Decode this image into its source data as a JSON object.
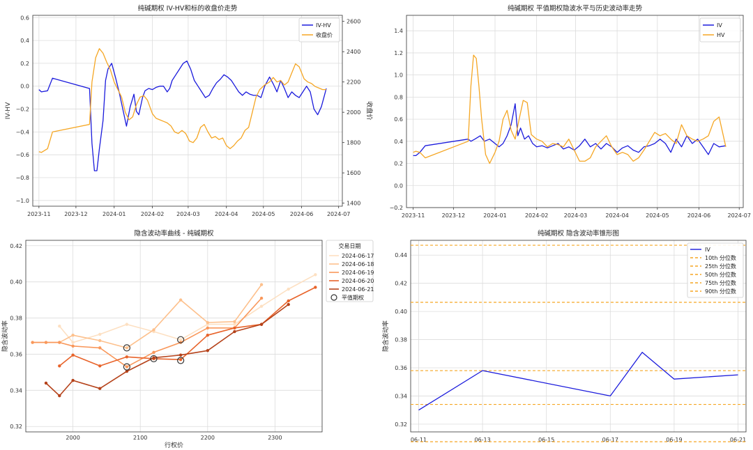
{
  "chart_data": [
    {
      "type": "line",
      "title": "纯碱期权 IV-HV和标的收盘价走势",
      "ylabel": "IV-HV",
      "y2label": "收盘价",
      "x_ticks": [
        "2023-11",
        "2023-12",
        "2024-01",
        "2024-02",
        "2024-03",
        "2024-04",
        "2024-05",
        "2024-06",
        "2024-07"
      ],
      "xlim": [
        "2023-10-27",
        "2024-07-04"
      ],
      "ylim": [
        -1.05,
        0.62
      ],
      "y_ticks": [
        -1.0,
        -0.8,
        -0.6,
        -0.4,
        -0.2,
        0.0,
        0.2,
        0.4,
        0.6
      ],
      "y_tick_labels": [
        "−1.0",
        "−0.8",
        "−0.6",
        "−0.4",
        "−0.2",
        "0.0",
        "0.2",
        "0.4",
        "0.6"
      ],
      "y2lim": [
        1380,
        2640
      ],
      "y2_ticks": [
        1400,
        1600,
        1800,
        2000,
        2200,
        2400,
        2600
      ],
      "y2_tick_labels": [
        "1400",
        "1600",
        "1800",
        "2000",
        "2200",
        "2400",
        "2600"
      ],
      "grid": true,
      "legend": "top-right",
      "series": [
        {
          "name": "IV-HV",
          "axis": "left",
          "color": "#1a1adc",
          "x": [
            "2023-11-01",
            "2023-11-03",
            "2023-11-08",
            "2023-11-12",
            "2023-12-12",
            "2023-12-14",
            "2023-12-16",
            "2023-12-18",
            "2023-12-20",
            "2023-12-23",
            "2023-12-25",
            "2023-12-27",
            "2023-12-30",
            "2024-01-02",
            "2024-01-05",
            "2024-01-08",
            "2024-01-11",
            "2024-01-14",
            "2024-01-17",
            "2024-01-19",
            "2024-01-21",
            "2024-01-24",
            "2024-01-26",
            "2024-01-29",
            "2024-02-01",
            "2024-02-04",
            "2024-02-07",
            "2024-02-10",
            "2024-02-13",
            "2024-02-15",
            "2024-02-17",
            "2024-02-20",
            "2024-02-23",
            "2024-02-26",
            "2024-02-29",
            "2024-03-03",
            "2024-03-06",
            "2024-03-09",
            "2024-03-12",
            "2024-03-15",
            "2024-03-18",
            "2024-03-21",
            "2024-03-24",
            "2024-03-27",
            "2024-03-30",
            "2024-04-02",
            "2024-04-05",
            "2024-04-08",
            "2024-04-11",
            "2024-04-14",
            "2024-04-17",
            "2024-04-20",
            "2024-04-23",
            "2024-04-26",
            "2024-04-29",
            "2024-05-02",
            "2024-05-06",
            "2024-05-09",
            "2024-05-12",
            "2024-05-15",
            "2024-05-18",
            "2024-05-21",
            "2024-05-24",
            "2024-05-27",
            "2024-05-30",
            "2024-06-02",
            "2024-06-05",
            "2024-06-08",
            "2024-06-11",
            "2024-06-14",
            "2024-06-17",
            "2024-06-19",
            "2024-06-21"
          ],
          "y": [
            -0.03,
            -0.05,
            -0.04,
            0.07,
            -0.02,
            -0.5,
            -0.74,
            -0.74,
            -0.55,
            -0.3,
            0.05,
            0.15,
            0.2,
            0.08,
            -0.05,
            -0.2,
            -0.35,
            -0.18,
            -0.07,
            -0.22,
            -0.25,
            -0.1,
            -0.04,
            -0.02,
            -0.03,
            -0.01,
            0.0,
            0.0,
            -0.05,
            -0.02,
            0.05,
            0.1,
            0.15,
            0.2,
            0.22,
            0.15,
            0.05,
            0.0,
            -0.05,
            -0.1,
            -0.08,
            -0.02,
            0.03,
            0.06,
            0.1,
            0.08,
            0.05,
            0.0,
            -0.05,
            -0.08,
            -0.05,
            -0.07,
            -0.08,
            -0.08,
            -0.1,
            0.0,
            0.08,
            0.02,
            -0.05,
            0.05,
            -0.02,
            -0.1,
            -0.05,
            -0.08,
            -0.1,
            -0.05,
            0.0,
            -0.05,
            -0.2,
            -0.25,
            -0.18,
            -0.1,
            -0.02
          ]
        },
        {
          "name": "收盘价",
          "axis": "right",
          "color": "#f5a623",
          "x": [
            "2023-11-01",
            "2023-11-03",
            "2023-11-08",
            "2023-11-12",
            "2023-12-12",
            "2023-12-14",
            "2023-12-17",
            "2023-12-20",
            "2023-12-23",
            "2023-12-26",
            "2023-12-29",
            "2024-01-01",
            "2024-01-04",
            "2024-01-07",
            "2024-01-10",
            "2024-01-13",
            "2024-01-16",
            "2024-01-19",
            "2024-01-22",
            "2024-01-25",
            "2024-01-28",
            "2024-02-01",
            "2024-02-04",
            "2024-02-07",
            "2024-02-10",
            "2024-02-13",
            "2024-02-16",
            "2024-02-19",
            "2024-02-22",
            "2024-02-25",
            "2024-02-28",
            "2024-03-02",
            "2024-03-05",
            "2024-03-08",
            "2024-03-11",
            "2024-03-14",
            "2024-03-17",
            "2024-03-20",
            "2024-03-23",
            "2024-03-26",
            "2024-03-29",
            "2024-04-01",
            "2024-04-04",
            "2024-04-07",
            "2024-04-10",
            "2024-04-13",
            "2024-04-16",
            "2024-04-19",
            "2024-04-22",
            "2024-04-25",
            "2024-04-28",
            "2024-05-02",
            "2024-05-06",
            "2024-05-09",
            "2024-05-12",
            "2024-05-15",
            "2024-05-18",
            "2024-05-21",
            "2024-05-24",
            "2024-05-27",
            "2024-05-30",
            "2024-06-03",
            "2024-06-06",
            "2024-06-09",
            "2024-06-12",
            "2024-06-15",
            "2024-06-18",
            "2024-06-21"
          ],
          "y": [
            1740,
            1735,
            1760,
            1870,
            1920,
            2200,
            2360,
            2420,
            2390,
            2330,
            2280,
            2200,
            2150,
            2100,
            2000,
            1950,
            1970,
            2050,
            2100,
            2110,
            2080,
            1990,
            1960,
            1950,
            1940,
            1930,
            1910,
            1870,
            1860,
            1880,
            1860,
            1810,
            1800,
            1830,
            1900,
            1920,
            1870,
            1830,
            1840,
            1820,
            1830,
            1780,
            1760,
            1780,
            1810,
            1830,
            1880,
            1900,
            2000,
            2100,
            2150,
            2180,
            2200,
            2230,
            2200,
            2210,
            2180,
            2200,
            2260,
            2320,
            2300,
            2220,
            2200,
            2190,
            2170,
            2160,
            2150,
            2150
          ]
        }
      ]
    },
    {
      "type": "line",
      "title": "纯碱期权 平值期权隐波水平与历史波动率走势",
      "x_ticks": [
        "2023-11",
        "2023-12",
        "2024-01",
        "2024-02",
        "2024-03",
        "2024-04",
        "2024-05",
        "2024-06",
        "2024-07"
      ],
      "xlim": [
        "2023-10-27",
        "2024-07-04"
      ],
      "ylim": [
        -0.2,
        1.54
      ],
      "y_ticks": [
        -0.2,
        0.0,
        0.2,
        0.4,
        0.6,
        0.8,
        1.0,
        1.2,
        1.4
      ],
      "y_tick_labels": [
        "−0.2",
        "0.0",
        "0.2",
        "0.4",
        "0.6",
        "0.8",
        "1.0",
        "1.2",
        "1.4"
      ],
      "grid": true,
      "legend": "top-right",
      "series": [
        {
          "name": "IV",
          "color": "#1a1adc",
          "x": [
            "2023-11-01",
            "2023-11-03",
            "2023-11-06",
            "2023-11-10",
            "2023-12-12",
            "2023-12-14",
            "2023-12-17",
            "2023-12-21",
            "2023-12-24",
            "2023-12-28",
            "2024-01-01",
            "2024-01-04",
            "2024-01-07",
            "2024-01-10",
            "2024-01-13",
            "2024-01-16",
            "2024-01-18",
            "2024-01-20",
            "2024-01-23",
            "2024-01-26",
            "2024-01-29",
            "2024-02-01",
            "2024-02-05",
            "2024-02-09",
            "2024-02-13",
            "2024-02-17",
            "2024-02-21",
            "2024-02-25",
            "2024-02-29",
            "2024-03-04",
            "2024-03-08",
            "2024-03-12",
            "2024-03-16",
            "2024-03-20",
            "2024-03-24",
            "2024-03-28",
            "2024-04-01",
            "2024-04-05",
            "2024-04-09",
            "2024-04-13",
            "2024-04-17",
            "2024-04-21",
            "2024-04-25",
            "2024-04-29",
            "2024-05-03",
            "2024-05-07",
            "2024-05-11",
            "2024-05-15",
            "2024-05-19",
            "2024-05-23",
            "2024-05-27",
            "2024-05-31",
            "2024-06-04",
            "2024-06-08",
            "2024-06-12",
            "2024-06-16",
            "2024-06-21"
          ],
          "y": [
            0.27,
            0.27,
            0.3,
            0.36,
            0.42,
            0.4,
            0.42,
            0.45,
            0.4,
            0.42,
            0.38,
            0.35,
            0.38,
            0.45,
            0.55,
            0.74,
            0.45,
            0.52,
            0.42,
            0.45,
            0.38,
            0.35,
            0.36,
            0.34,
            0.36,
            0.38,
            0.33,
            0.35,
            0.32,
            0.36,
            0.42,
            0.35,
            0.38,
            0.33,
            0.38,
            0.35,
            0.3,
            0.34,
            0.36,
            0.32,
            0.3,
            0.35,
            0.36,
            0.38,
            0.42,
            0.38,
            0.3,
            0.42,
            0.35,
            0.45,
            0.38,
            0.42,
            0.35,
            0.28,
            0.38,
            0.35,
            0.36
          ]
        },
        {
          "name": "HV",
          "color": "#f5a623",
          "x": [
            "2023-11-01",
            "2023-11-03",
            "2023-11-06",
            "2023-11-10",
            "2023-12-12",
            "2023-12-14",
            "2023-12-16",
            "2023-12-18",
            "2023-12-20",
            "2023-12-22",
            "2023-12-25",
            "2023-12-28",
            "2024-01-01",
            "2024-01-04",
            "2024-01-07",
            "2024-01-10",
            "2024-01-13",
            "2024-01-16",
            "2024-01-19",
            "2024-01-22",
            "2024-01-25",
            "2024-01-28",
            "2024-02-01",
            "2024-02-05",
            "2024-02-09",
            "2024-02-13",
            "2024-02-17",
            "2024-02-21",
            "2024-02-25",
            "2024-02-29",
            "2024-03-04",
            "2024-03-08",
            "2024-03-12",
            "2024-03-16",
            "2024-03-20",
            "2024-03-24",
            "2024-03-28",
            "2024-04-01",
            "2024-04-05",
            "2024-04-09",
            "2024-04-13",
            "2024-04-17",
            "2024-04-21",
            "2024-04-25",
            "2024-04-29",
            "2024-05-03",
            "2024-05-07",
            "2024-05-11",
            "2024-05-15",
            "2024-05-19",
            "2024-05-23",
            "2024-05-27",
            "2024-05-31",
            "2024-06-04",
            "2024-06-08",
            "2024-06-12",
            "2024-06-16",
            "2024-06-21"
          ],
          "y": [
            0.3,
            0.31,
            0.3,
            0.25,
            0.4,
            0.9,
            1.18,
            1.15,
            0.9,
            0.6,
            0.28,
            0.2,
            0.3,
            0.4,
            0.6,
            0.68,
            0.5,
            0.42,
            0.6,
            0.77,
            0.75,
            0.46,
            0.42,
            0.4,
            0.35,
            0.38,
            0.37,
            0.35,
            0.42,
            0.32,
            0.22,
            0.22,
            0.25,
            0.35,
            0.4,
            0.45,
            0.35,
            0.28,
            0.3,
            0.28,
            0.22,
            0.25,
            0.32,
            0.4,
            0.48,
            0.45,
            0.47,
            0.42,
            0.38,
            0.55,
            0.45,
            0.42,
            0.4,
            0.42,
            0.45,
            0.58,
            0.62,
            0.35
          ]
        }
      ]
    },
    {
      "type": "line",
      "title": "隐含波动率曲线 - 纯碱期权",
      "xlabel": "行权价",
      "ylabel": "隐含波动率",
      "xlim": [
        1930,
        2370
      ],
      "ylim": [
        0.317,
        0.423
      ],
      "x_ticks": [
        2000,
        2100,
        2200,
        2300
      ],
      "x_tick_labels": [
        "2000",
        "2100",
        "2200",
        "2300"
      ],
      "y_ticks": [
        0.32,
        0.34,
        0.36,
        0.38,
        0.4,
        0.42
      ],
      "y_tick_labels": [
        "0.32",
        "0.34",
        "0.36",
        "0.38",
        "0.40",
        "0.42"
      ],
      "grid": true,
      "legend_title": "交易日期",
      "legend": "outside-right",
      "atm_label": "平值期权",
      "series": [
        {
          "name": "2024-06-17",
          "color": "#fde0c2",
          "atm_x": 2160,
          "atm_y": 0.368,
          "x": [
            1980,
            2000,
            2040,
            2080,
            2120,
            2160,
            2200,
            2240,
            2280,
            2320,
            2360
          ],
          "y": [
            0.3755,
            0.3665,
            0.371,
            0.3765,
            0.3725,
            0.368,
            0.3765,
            0.3765,
            0.3865,
            0.396,
            0.404
          ]
        },
        {
          "name": "2024-06-18",
          "color": "#fdc08c",
          "atm_x": 2080,
          "atm_y": 0.3635,
          "x": [
            1940,
            1960,
            1980,
            2000,
            2040,
            2080,
            2120,
            2160,
            2200,
            2240,
            2280
          ],
          "y": [
            0.3665,
            0.3665,
            0.3665,
            0.3705,
            0.3675,
            0.3635,
            0.3735,
            0.39,
            0.3775,
            0.378,
            0.3985
          ]
        },
        {
          "name": "2024-06-19",
          "color": "#f9975a",
          "atm_x": 2080,
          "atm_y": 0.353,
          "x": [
            1940,
            1960,
            1980,
            2000,
            2040,
            2080,
            2120,
            2160,
            2200,
            2240,
            2280
          ],
          "y": [
            0.3665,
            0.3665,
            0.3665,
            0.3645,
            0.3635,
            0.353,
            0.361,
            0.3665,
            0.3745,
            0.3745,
            0.391
          ]
        },
        {
          "name": "2024-06-20",
          "color": "#e8632a",
          "atm_x": 2120,
          "atm_y": 0.3575,
          "x": [
            1980,
            2000,
            2040,
            2080,
            2120,
            2160,
            2200,
            2240,
            2280,
            2320,
            2360
          ],
          "y": [
            0.3535,
            0.3595,
            0.3535,
            0.3585,
            0.3575,
            0.357,
            0.3705,
            0.3745,
            0.3765,
            0.3895,
            0.397
          ]
        },
        {
          "name": "2024-06-21",
          "color": "#b5421a",
          "atm_x": 2160,
          "atm_y": 0.3565,
          "x": [
            1960,
            1980,
            2000,
            2040,
            2080,
            2120,
            2160,
            2200,
            2240,
            2280,
            2320
          ],
          "y": [
            0.344,
            0.337,
            0.3455,
            0.341,
            0.3505,
            0.358,
            0.3595,
            0.362,
            0.3725,
            0.3765,
            0.3875
          ]
        }
      ]
    },
    {
      "type": "line",
      "title": "纯碱期权 隐含波动率锥形图",
      "ylabel": "隐含波动率",
      "x_ticks": [
        "06-11",
        "06-13",
        "06-15",
        "06-17",
        "06-19",
        "06-21"
      ],
      "xlim": [
        -0.25,
        10.25
      ],
      "ylim": [
        0.3145,
        0.4505
      ],
      "y_ticks": [
        0.32,
        0.34,
        0.36,
        0.38,
        0.4,
        0.42,
        0.44
      ],
      "y_tick_labels": [
        "0.32",
        "0.34",
        "0.36",
        "0.38",
        "0.40",
        "0.42",
        "0.44"
      ],
      "grid": true,
      "legend": "top-right",
      "series": [
        {
          "name": "IV",
          "color": "#1a1adc",
          "x": [
            0,
            2,
            6,
            7,
            8,
            10
          ],
          "y": [
            0.33,
            0.358,
            0.34,
            0.371,
            0.352,
            0.355
          ]
        }
      ],
      "hlines": [
        {
          "name": "10th 分位数",
          "y": 0.3075,
          "color": "#f5a623"
        },
        {
          "name": "25th 分位数",
          "y": 0.334,
          "color": "#f5a623"
        },
        {
          "name": "50th 分位数",
          "y": 0.358,
          "color": "#f5a623"
        },
        {
          "name": "75th 分位数",
          "y": 0.4065,
          "color": "#f5a623"
        },
        {
          "name": "90th 分位数",
          "y": 0.447,
          "color": "#f5a623"
        }
      ]
    }
  ],
  "colors": {
    "grid": "#dcdcdc",
    "axis": "#333333",
    "right_axis_label": "#d62728",
    "left_axis_label": "#1f77b4",
    "atm_marker": "#333333"
  }
}
